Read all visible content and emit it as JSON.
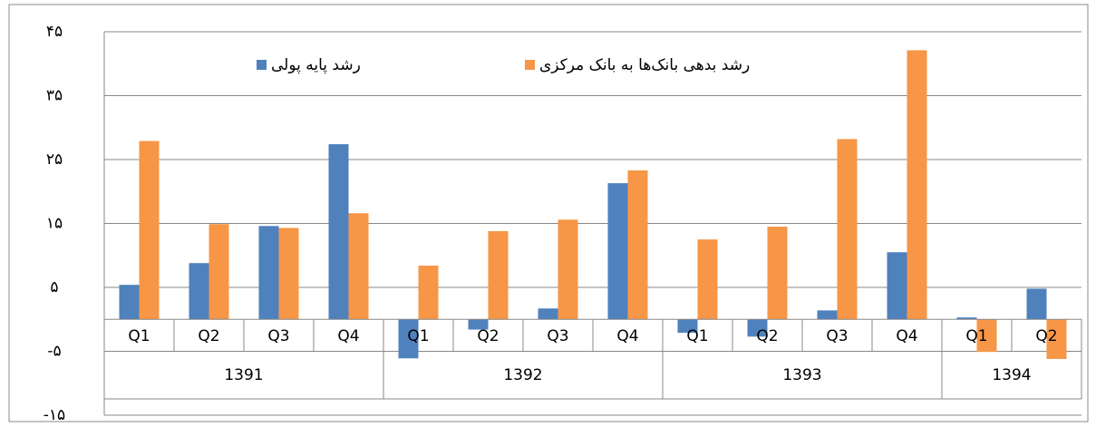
{
  "chart_data": {
    "type": "bar",
    "groups": [
      {
        "name": "1391",
        "categories": [
          "Q1",
          "Q2",
          "Q3",
          "Q4"
        ]
      },
      {
        "name": "1392",
        "categories": [
          "Q1",
          "Q2",
          "Q3",
          "Q4"
        ]
      },
      {
        "name": "1393",
        "categories": [
          "Q1",
          "Q2",
          "Q3",
          "Q4"
        ]
      },
      {
        "name": "1394",
        "categories": [
          "Q1",
          "Q2"
        ]
      }
    ],
    "series": [
      {
        "name": "رشد پایه پولی",
        "color": "#4f81bd",
        "values": [
          5.4,
          8.8,
          14.6,
          27.4,
          -6.1,
          -1.6,
          1.7,
          21.3,
          -2.1,
          -2.7,
          1.4,
          10.5,
          0.3,
          4.8
        ]
      },
      {
        "name": "رشد بدهی بانک‌ها به بانک مرکزی",
        "color": "#f79646",
        "values": [
          27.9,
          14.9,
          14.3,
          16.6,
          8.4,
          13.8,
          15.6,
          23.3,
          12.5,
          14.5,
          28.2,
          42.1,
          -5.1,
          -6.2
        ]
      }
    ],
    "ylim": [
      -15,
      45
    ],
    "yticks": [
      {
        "value": -15,
        "label": "-۱۵"
      },
      {
        "value": -5,
        "label": "-۵"
      },
      {
        "value": 5,
        "label": "۵"
      },
      {
        "value": 15,
        "label": "۱۵"
      },
      {
        "value": 25,
        "label": "۲۵"
      },
      {
        "value": 35,
        "label": "۳۵"
      },
      {
        "value": 45,
        "label": "۴۵"
      }
    ],
    "grid": true
  }
}
